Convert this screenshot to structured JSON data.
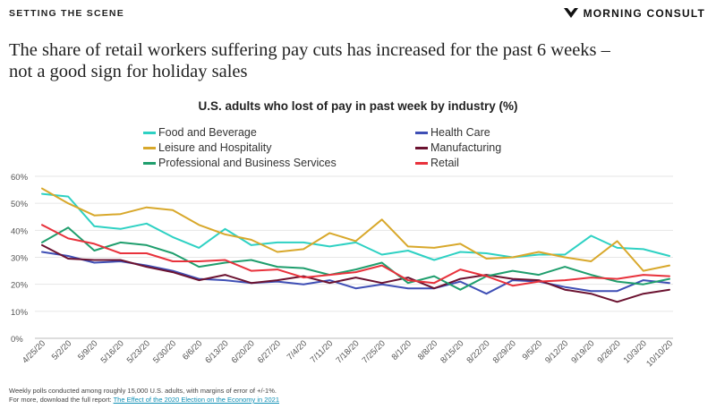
{
  "header": {
    "section_label": "SETTING THE SCENE",
    "brand_name": "MORNING CONSULT",
    "headline_line1": "The share of retail workers suffering pay cuts has increased for the past 6 weeks –",
    "headline_line2": "not a good sign for holiday sales"
  },
  "footnote": {
    "line1": "Weekly polls conducted among roughly 15,000 U.S. adults, with margins of error of +/-1%.",
    "line2_prefix": "For more, download the full report: ",
    "link_text": "The Effect of the 2020 Election on the Economy in 2021"
  },
  "chart_data": {
    "type": "line",
    "title": "U.S. adults who lost of pay in past week by industry (%)",
    "xlabel": "",
    "ylabel": "",
    "ylim": [
      0,
      60
    ],
    "yticks": [
      "0%",
      "10%",
      "20%",
      "30%",
      "40%",
      "50%",
      "60%"
    ],
    "grid": true,
    "legend_position": "top",
    "categories": [
      "4/25/20",
      "5/2/20",
      "5/9/20",
      "5/16/20",
      "5/23/20",
      "5/30/20",
      "6/6/20",
      "6/13/20",
      "6/20/20",
      "6/27/20",
      "7/4/20",
      "7/11/20",
      "7/18/20",
      "7/25/20",
      "8/1/20",
      "8/8/20",
      "8/15/20",
      "8/22/20",
      "8/29/20",
      "9/5/20",
      "9/12/20",
      "9/19/20",
      "9/26/20",
      "10/3/20",
      "10/10/20"
    ],
    "series": [
      {
        "name": "Food and Beverage",
        "color": "#2ed1c3",
        "values": [
          53.5,
          52.5,
          41.5,
          40.5,
          42.5,
          37.5,
          33.5,
          40.5,
          34.5,
          35.5,
          35.5,
          34,
          35.5,
          31,
          32.5,
          29,
          32,
          31.5,
          30,
          31,
          31,
          38,
          33.5,
          33,
          30.5
        ]
      },
      {
        "name": "Health Care",
        "color": "#3f4fb5",
        "values": [
          32,
          30.5,
          28,
          28.5,
          27,
          25,
          22,
          21.5,
          20.5,
          21,
          20,
          21.5,
          18.5,
          20,
          18.5,
          18.5,
          21,
          16.5,
          21.5,
          21,
          19,
          17.5,
          17.5,
          21.5,
          20.5
        ]
      },
      {
        "name": "Leisure and Hospitality",
        "color": "#d8a82b",
        "values": [
          55.5,
          50,
          45.5,
          46,
          48.5,
          47.5,
          42,
          38.5,
          36.5,
          32,
          33,
          39,
          36,
          44,
          34,
          33.5,
          35,
          29.5,
          30,
          32,
          30,
          28.5,
          36,
          25,
          27
        ]
      },
      {
        "name": "Manufacturing",
        "color": "#6b1230",
        "values": [
          34.5,
          29.5,
          29,
          29,
          26.5,
          24.5,
          21.5,
          23.5,
          20.5,
          21.5,
          23,
          20.5,
          22.5,
          20.5,
          22.5,
          18.5,
          22,
          23.5,
          22,
          21.5,
          18,
          16.5,
          13.5,
          16.5,
          18
        ]
      },
      {
        "name": "Professional and Business Services",
        "color": "#1f9e6d",
        "values": [
          35.5,
          41,
          32.5,
          35.5,
          34.5,
          31.5,
          26.5,
          28,
          29,
          26.5,
          26,
          23.5,
          25.5,
          28,
          20.5,
          23,
          18,
          23,
          25,
          23.5,
          26.5,
          23.5,
          21,
          20,
          22
        ]
      },
      {
        "name": "Retail",
        "color": "#e8323c",
        "values": [
          42,
          37,
          35,
          31.5,
          31.5,
          28.5,
          28.5,
          29,
          25,
          25.5,
          22.5,
          23.5,
          24.5,
          27,
          21.5,
          20.5,
          25.5,
          23,
          19.5,
          21,
          21.5,
          22.5,
          22,
          23.5,
          23
        ]
      }
    ]
  }
}
